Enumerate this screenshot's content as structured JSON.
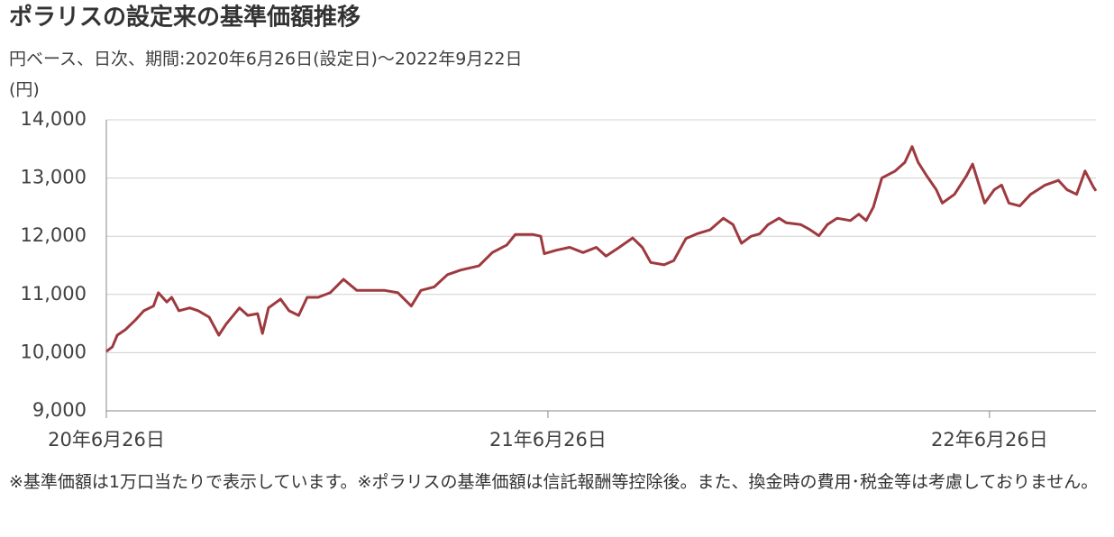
{
  "chart_data": {
    "type": "line",
    "title": "ポラリスの設定来の基準価額推移",
    "subtitle": "円ベース、日次、期間:2020年6月26日(設定日)～2022年9月22日",
    "y_label": "(円)",
    "note": "※基準価額は1万口当たりで表示しています。※ポラリスの基準価額は信託報酬等控除後。また、換金時の費用･税金等は考慮しておりません。",
    "color": "#9e3a3f",
    "grid": true,
    "xlim": [
      "2020-06-26",
      "2022-09-22"
    ],
    "xticks": [
      {
        "value": "2020-06-26",
        "label": "20年6月26日"
      },
      {
        "value": "2021-06-26",
        "label": "21年6月26日"
      },
      {
        "value": "2022-06-26",
        "label": "22年6月26日"
      }
    ],
    "ylim": [
      9000,
      14000
    ],
    "yticks": [
      {
        "value": 9000,
        "label": "9,000"
      },
      {
        "value": 10000,
        "label": "10,000"
      },
      {
        "value": 11000,
        "label": "11,000"
      },
      {
        "value": 12000,
        "label": "12,000"
      },
      {
        "value": 13000,
        "label": "13,000"
      },
      {
        "value": 14000,
        "label": "14,000"
      }
    ],
    "x": [
      "2020-06-26",
      "2020-07-01",
      "2020-07-05",
      "2020-07-12",
      "2020-07-20",
      "2020-07-27",
      "2020-08-04",
      "2020-08-08",
      "2020-08-15",
      "2020-08-19",
      "2020-08-25",
      "2020-09-03",
      "2020-09-10",
      "2020-09-19",
      "2020-09-27",
      "2020-10-03",
      "2020-10-14",
      "2020-10-21",
      "2020-10-29",
      "2020-11-02",
      "2020-11-07",
      "2020-11-17",
      "2020-11-24",
      "2020-12-02",
      "2020-12-09",
      "2020-12-18",
      "2020-12-28",
      "2021-01-08",
      "2021-01-19",
      "2021-01-30",
      "2021-02-11",
      "2021-02-22",
      "2021-03-05",
      "2021-03-13",
      "2021-03-24",
      "2021-04-04",
      "2021-04-15",
      "2021-04-30",
      "2021-05-11",
      "2021-05-23",
      "2021-05-30",
      "2021-06-14",
      "2021-06-20",
      "2021-06-23",
      "2021-07-03",
      "2021-07-14",
      "2021-07-25",
      "2021-08-05",
      "2021-08-13",
      "2021-08-24",
      "2021-09-04",
      "2021-09-12",
      "2021-09-19",
      "2021-09-30",
      "2021-10-08",
      "2021-10-18",
      "2021-10-27",
      "2021-11-07",
      "2021-11-18",
      "2021-11-26",
      "2021-12-03",
      "2021-12-11",
      "2021-12-18",
      "2021-12-25",
      "2022-01-03",
      "2022-01-09",
      "2022-01-21",
      "2022-01-28",
      "2022-02-05",
      "2022-02-12",
      "2022-02-20",
      "2022-03-03",
      "2022-03-10",
      "2022-03-16",
      "2022-03-22",
      "2022-03-29",
      "2022-04-09",
      "2022-04-17",
      "2022-04-23",
      "2022-04-28",
      "2022-05-05",
      "2022-05-13",
      "2022-05-18",
      "2022-05-28",
      "2022-06-07",
      "2022-06-12",
      "2022-06-16",
      "2022-06-22",
      "2022-06-30",
      "2022-07-06",
      "2022-07-12",
      "2022-07-21",
      "2022-07-30",
      "2022-08-11",
      "2022-08-22",
      "2022-08-29",
      "2022-09-06",
      "2022-09-13",
      "2022-09-20",
      "2022-09-22"
    ],
    "values": [
      10020,
      10100,
      10300,
      10400,
      10560,
      10720,
      10800,
      11030,
      10870,
      10950,
      10720,
      10770,
      10720,
      10610,
      10300,
      10490,
      10770,
      10640,
      10670,
      10330,
      10770,
      10920,
      10720,
      10640,
      10950,
      10950,
      11030,
      11260,
      11070,
      11070,
      11070,
      11030,
      10800,
      11070,
      11130,
      11340,
      11420,
      11490,
      11720,
      11850,
      12030,
      12030,
      12000,
      11700,
      11760,
      11810,
      11720,
      11810,
      11660,
      11810,
      11970,
      11810,
      11550,
      11510,
      11580,
      11960,
      12040,
      12110,
      12310,
      12200,
      11880,
      12000,
      12040,
      12200,
      12310,
      12230,
      12200,
      12120,
      12010,
      12200,
      12310,
      12270,
      12380,
      12270,
      12500,
      13000,
      13120,
      13270,
      13540,
      13270,
      13040,
      12800,
      12570,
      12720,
      13040,
      13240,
      12970,
      12570,
      12800,
      12880,
      12570,
      12520,
      12720,
      12880,
      12960,
      12800,
      12720,
      13120,
      12840,
      12780
    ]
  }
}
